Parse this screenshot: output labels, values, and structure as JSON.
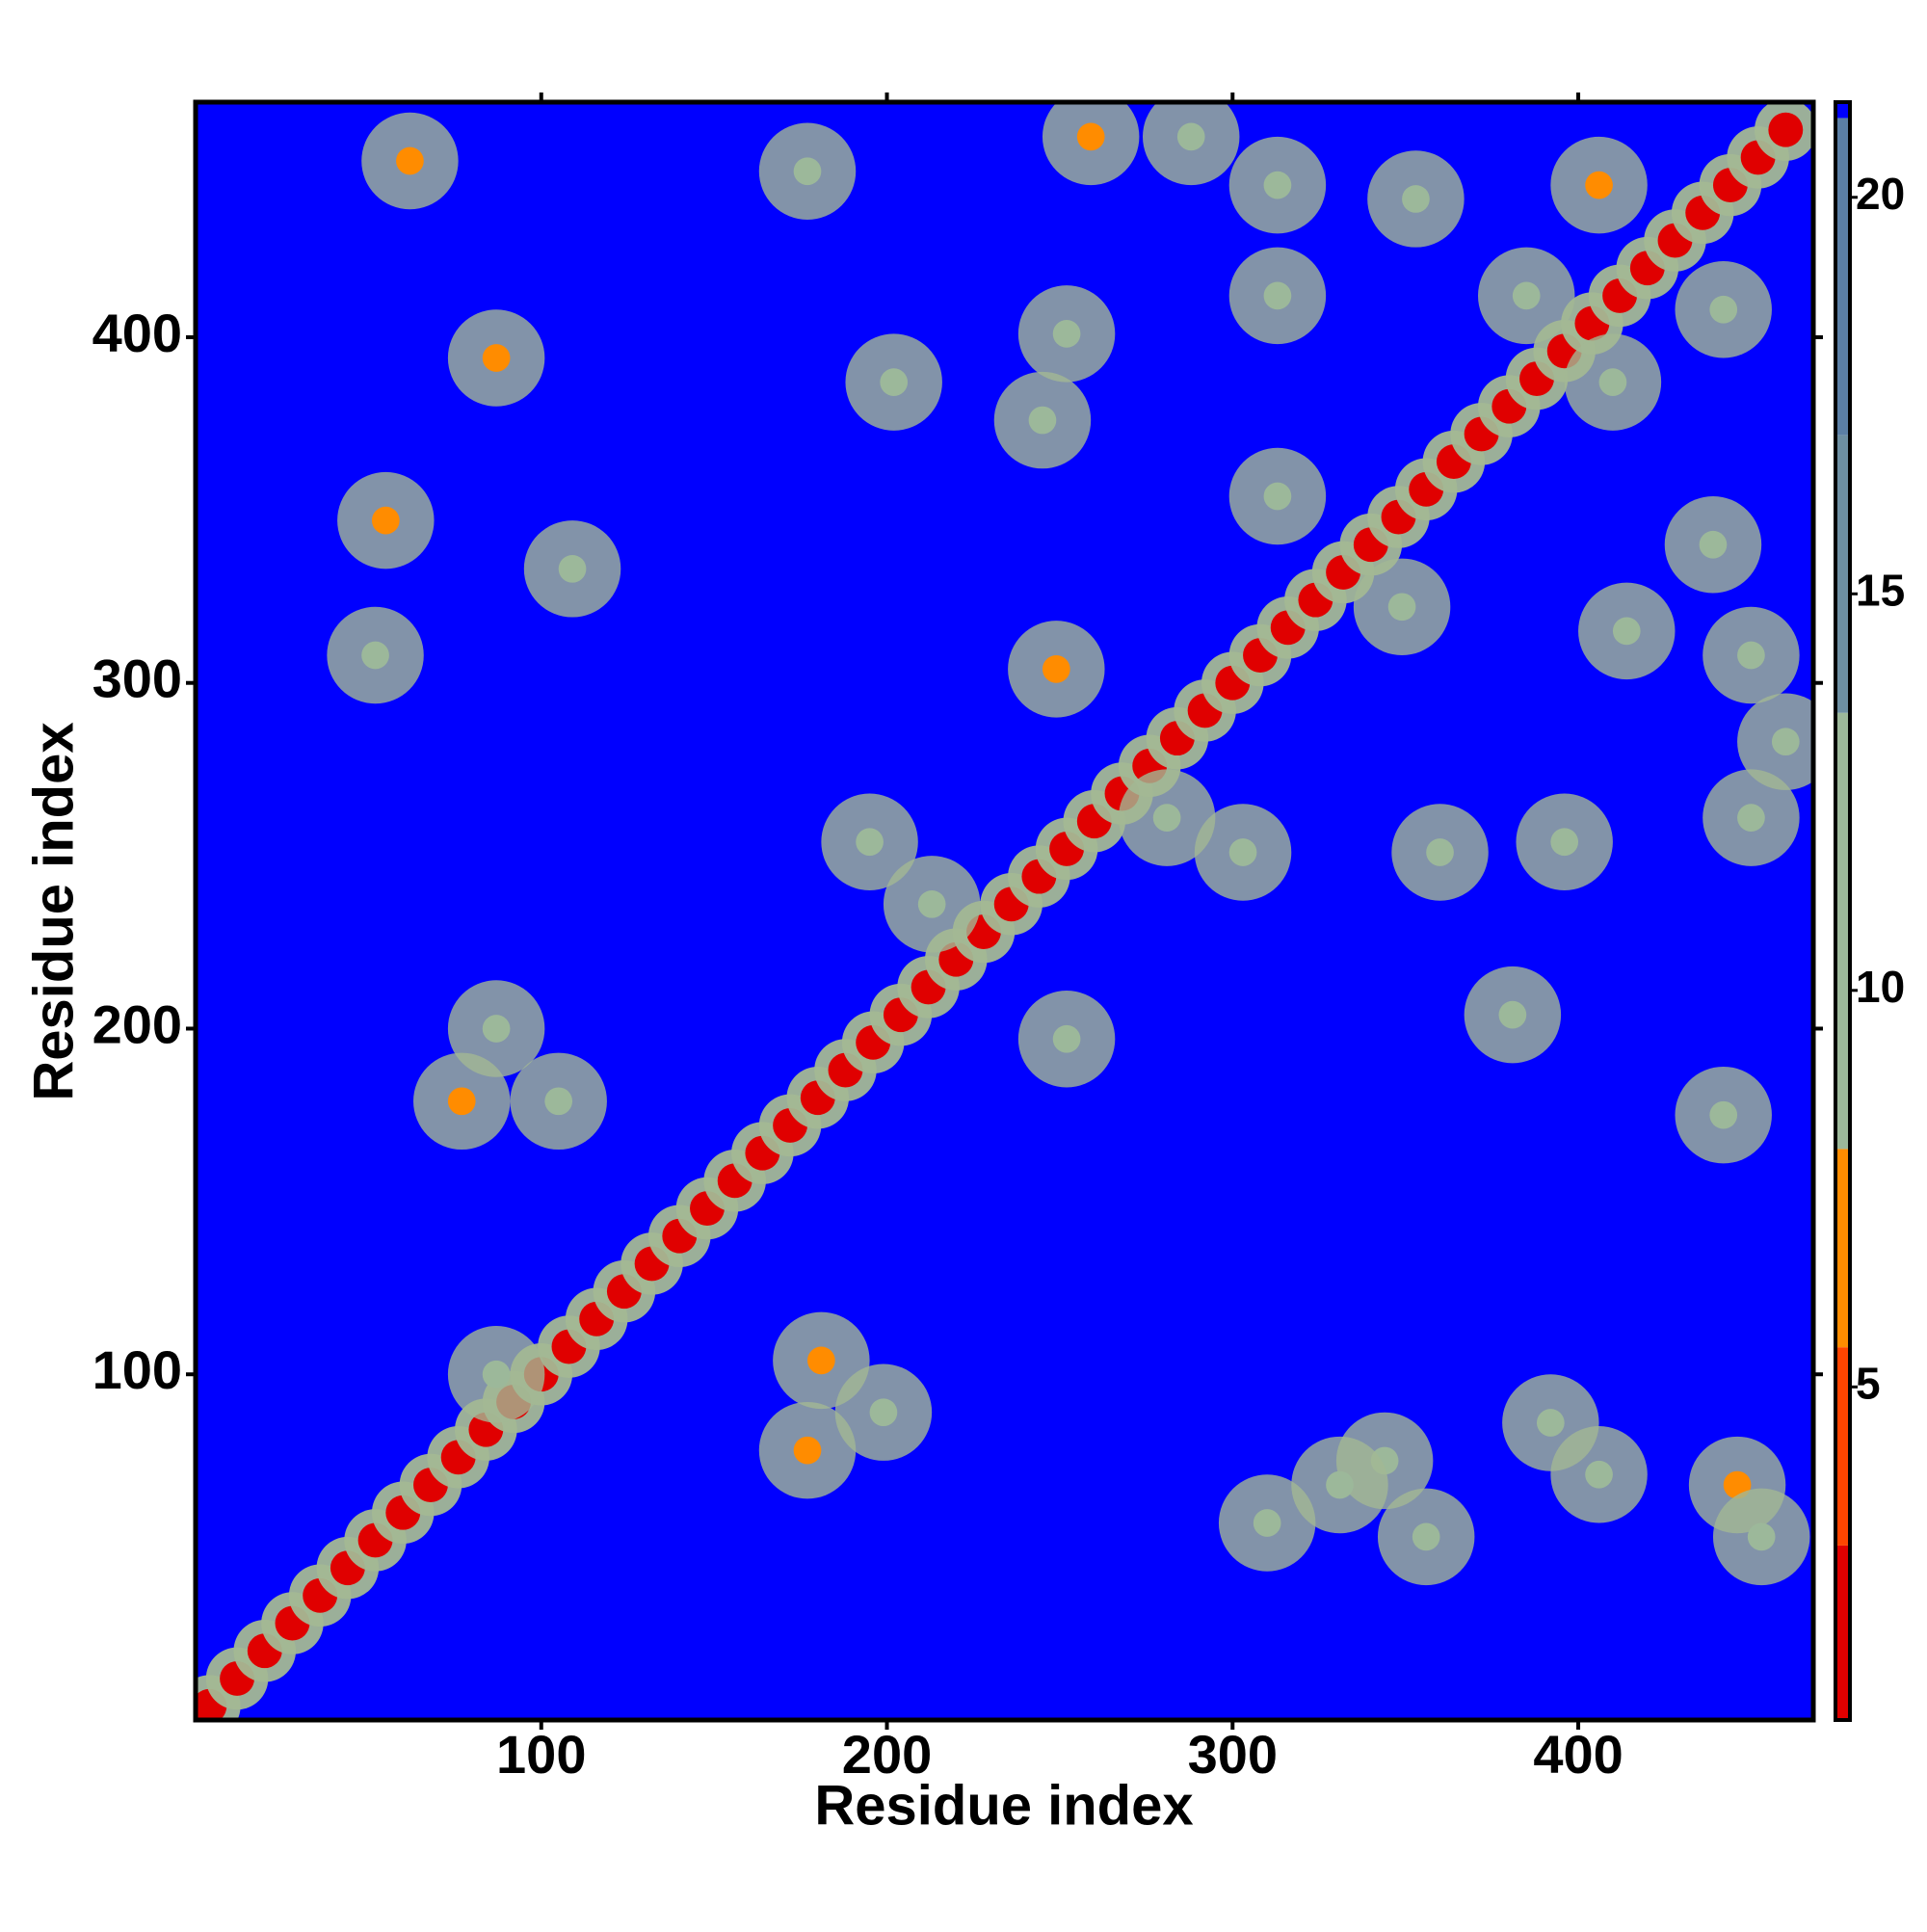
{
  "chart_data": {
    "type": "heatmap",
    "x_label": "Residue index",
    "y_label": "Residue index",
    "xlim": [
      0,
      468
    ],
    "ylim": [
      0,
      468
    ],
    "xticks": [
      100,
      200,
      300,
      400
    ],
    "yticks": [
      100,
      200,
      300,
      400
    ],
    "zlim": [
      0.8,
      21.2
    ],
    "zticks": [
      5,
      10,
      15,
      20
    ],
    "colorscale": [
      {
        "value": 0.8,
        "color": "#e00000"
      },
      {
        "value": 3,
        "color": "#ff4500"
      },
      {
        "value": 5.5,
        "color": "#ff8c00"
      },
      {
        "value": 8,
        "color": "#9cb89a"
      },
      {
        "value": 13.5,
        "color": "#6d8fa2"
      },
      {
        "value": 17,
        "color": "#5b7fa5"
      },
      {
        "value": 21,
        "color": "#0000ff"
      }
    ],
    "x": [
      4,
      12,
      20,
      28,
      36,
      44,
      52,
      60,
      68,
      76,
      84,
      92,
      100,
      108,
      116,
      124,
      132,
      140,
      148,
      156,
      164,
      172,
      180,
      188,
      196,
      204,
      212,
      220,
      228,
      236,
      244,
      252,
      260,
      268,
      276,
      284,
      292,
      300,
      308,
      316,
      324,
      332,
      340,
      348,
      356,
      364,
      372,
      380,
      388,
      396,
      404,
      412,
      420,
      428,
      436,
      444,
      452,
      460,
      62,
      87,
      55,
      52,
      177,
      202,
      252,
      245,
      259,
      288,
      313,
      313,
      353,
      406,
      442,
      385,
      410,
      313,
      349,
      414,
      439,
      450,
      460,
      450,
      360,
      396,
      381,
      442,
      303,
      281,
      249,
      195,
      213,
      252,
      87,
      77,
      105,
      181,
      199,
      177,
      310,
      344,
      356,
      331,
      392,
      406,
      446,
      453,
      87,
      109
    ],
    "y": [
      4,
      12,
      20,
      28,
      36,
      44,
      52,
      60,
      68,
      76,
      84,
      92,
      100,
      108,
      116,
      124,
      132,
      140,
      148,
      156,
      164,
      172,
      180,
      188,
      196,
      204,
      212,
      220,
      228,
      236,
      244,
      252,
      260,
      268,
      276,
      284,
      292,
      300,
      308,
      316,
      324,
      332,
      340,
      348,
      356,
      364,
      372,
      380,
      388,
      396,
      404,
      412,
      420,
      428,
      436,
      444,
      452,
      460,
      451,
      394,
      347,
      308,
      448,
      387,
      401,
      376,
      458,
      458,
      444,
      412,
      440,
      444,
      408,
      412,
      387,
      354,
      322,
      315,
      340,
      308,
      283,
      261,
      251,
      254,
      204,
      175,
      251,
      261,
      304,
      254,
      236,
      197,
      200,
      179,
      179,
      104,
      89,
      78,
      57,
      75,
      53,
      68,
      86,
      71,
      68,
      53,
      100,
      333
    ],
    "values": [
      2,
      2,
      2,
      2,
      2,
      2,
      2,
      2,
      2,
      2,
      2,
      2,
      2,
      2,
      2,
      2,
      2,
      2,
      2,
      2,
      2,
      2,
      2,
      2,
      2,
      2,
      2,
      2,
      2,
      2,
      2,
      2,
      2,
      2,
      2,
      2,
      2,
      2,
      2,
      2,
      2,
      2,
      2,
      2,
      2,
      2,
      2,
      2,
      2,
      2,
      2,
      2,
      2,
      2,
      2,
      2,
      2,
      2,
      6,
      7,
      7,
      9,
      11,
      10,
      9,
      10,
      7,
      9,
      9,
      9,
      10,
      7,
      9,
      8,
      10,
      8,
      9,
      9,
      8,
      9,
      10,
      9,
      9,
      8,
      9,
      10,
      9,
      9,
      7,
      9,
      9,
      9,
      10,
      6,
      9,
      7,
      8,
      6,
      9,
      9,
      8,
      10,
      9,
      9,
      7,
      9,
      9,
      12
    ]
  }
}
